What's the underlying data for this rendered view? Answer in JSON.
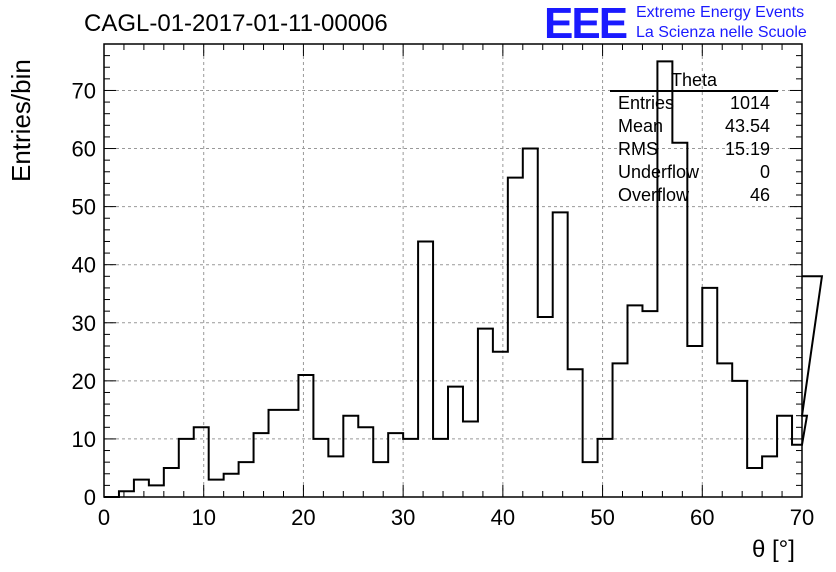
{
  "title": "CAGL-01-2017-01-11-00006",
  "logo": {
    "text": "EEE",
    "line1": "Extreme Energy Events",
    "line2": "La Scienza nelle Scuole",
    "color": "#1a1aff"
  },
  "stats": {
    "title": "Theta",
    "rows": [
      {
        "label": "Entries",
        "value": "1014"
      },
      {
        "label": "Mean",
        "value": "43.54"
      },
      {
        "label": "RMS",
        "value": "15.19"
      },
      {
        "label": "Underflow",
        "value": "0"
      },
      {
        "label": "Overflow",
        "value": "46"
      }
    ]
  },
  "chart_data": {
    "type": "bar",
    "title": "CAGL-01-2017-01-11-00006",
    "xlabel": "θ [°]",
    "ylabel": "Entries/bin",
    "xlim": [
      0,
      70
    ],
    "ylim": [
      0,
      78
    ],
    "grid": true,
    "bin_width": 1.5,
    "bin_start": 0,
    "x_ticks": [
      0,
      10,
      20,
      30,
      40,
      50,
      60,
      70
    ],
    "y_ticks": [
      0,
      10,
      20,
      30,
      40,
      50,
      60,
      70
    ],
    "values": [
      0,
      1,
      3,
      2,
      5,
      10,
      12,
      3,
      4,
      6,
      11,
      15,
      15,
      21,
      10,
      7,
      14,
      12,
      6,
      11,
      10,
      44,
      10,
      19,
      13,
      29,
      25,
      55,
      60,
      31,
      49,
      22,
      6,
      10,
      23,
      33,
      32,
      75,
      61,
      26,
      36,
      23,
      20,
      5,
      7,
      14,
      9,
      14,
      38
    ]
  }
}
